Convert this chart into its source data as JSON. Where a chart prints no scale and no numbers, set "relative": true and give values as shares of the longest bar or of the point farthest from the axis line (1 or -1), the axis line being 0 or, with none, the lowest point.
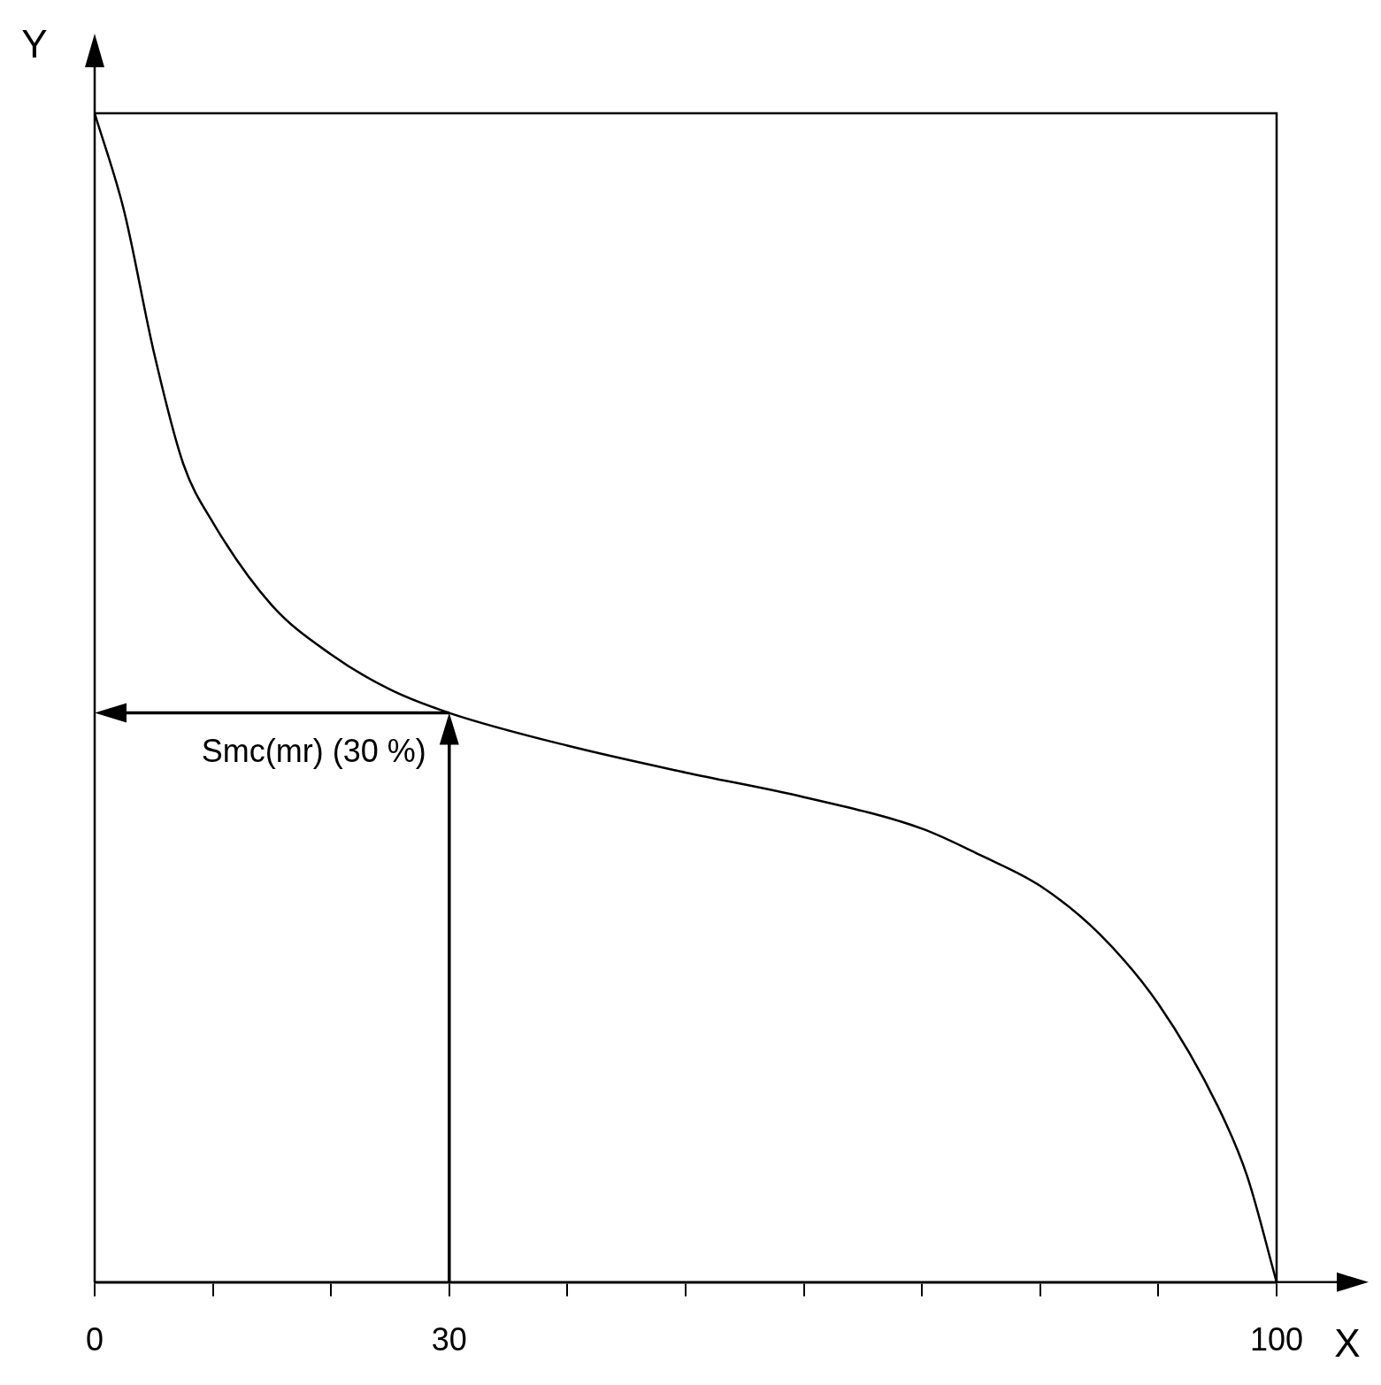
{
  "chart_data": {
    "type": "line",
    "relative": true,
    "xlabel": "X",
    "ylabel": "Y",
    "x": [
      0,
      2.5,
      5,
      7.5,
      10,
      15,
      20,
      25,
      30,
      40,
      50,
      60,
      70,
      75,
      80,
      85,
      90,
      95,
      97.5,
      100
    ],
    "series": [
      {
        "color": "#000000",
        "values": [
          1,
          0.916,
          0.796,
          0.7,
          0.65,
          0.579,
          0.537,
          0.507,
          0.487,
          0.459,
          0.436,
          0.415,
          0.388,
          0.365,
          0.339,
          0.298,
          0.238,
          0.151,
          0.091,
          0
        ]
      }
    ],
    "xlim": [
      0,
      100
    ],
    "xticks": [
      0,
      {
        "value": 10,
        "label": null
      },
      {
        "value": 20,
        "label": null
      },
      30,
      {
        "value": 40,
        "label": null
      },
      {
        "value": 50,
        "label": null
      },
      {
        "value": 60,
        "label": null
      },
      {
        "value": 70,
        "label": null
      },
      {
        "value": 80,
        "label": null
      },
      {
        "value": 90,
        "label": null
      },
      100
    ],
    "annotations": [
      {
        "text": "Smc(mr) (30 %)",
        "x": 30,
        "y": 0.487
      }
    ],
    "grid": false,
    "legend": false,
    "marker": "none",
    "line_style": "solid"
  }
}
